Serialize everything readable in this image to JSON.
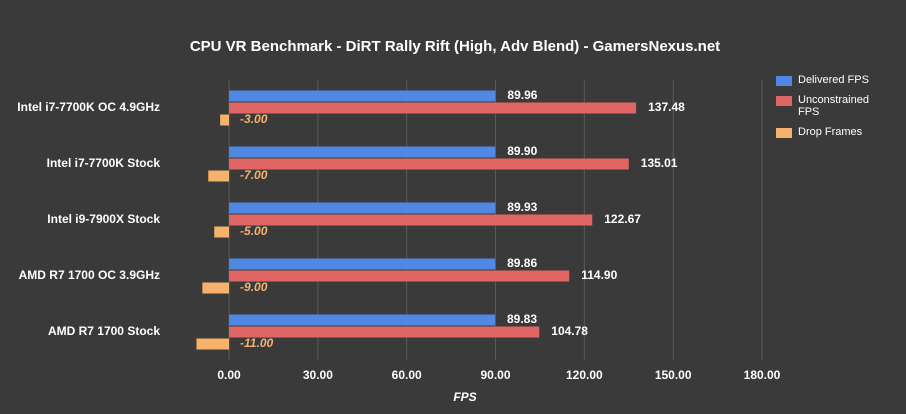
{
  "chart_data": {
    "type": "hbar",
    "title": "CPU VR Benchmark - DiRT Rally Rift (High, Adv Blend) - GamersNexus.net",
    "x_label": "FPS",
    "categories": [
      "Intel i7-7700K OC 4.9GHz",
      "Intel i7-7700K Stock",
      "Intel i9-7900X Stock",
      "AMD R7 1700 OC 3.9GHz",
      "AMD R7 1700 Stock"
    ],
    "series": [
      {
        "name": "Delivered FPS",
        "color": "#5088e6",
        "values": [
          89.96,
          89.9,
          89.93,
          89.86,
          89.83
        ],
        "value_labels": [
          "89.96",
          "89.90",
          "89.93",
          "89.86",
          "89.83"
        ]
      },
      {
        "name": "Unconstrained FPS",
        "color": "#e06666",
        "values": [
          137.48,
          135.01,
          122.67,
          114.9,
          104.78
        ],
        "value_labels": [
          "137.48",
          "135.01",
          "122.67",
          "114.90",
          "104.78"
        ]
      },
      {
        "name": "Drop Frames",
        "color": "#f6b26b",
        "values": [
          -3,
          -7,
          -5,
          -9,
          -11
        ],
        "value_labels": [
          "-3.00",
          "-7.00",
          "-5.00",
          "-9.00",
          "-11.00"
        ]
      }
    ],
    "xlim": [
      -12,
      180
    ],
    "xticks": [
      {
        "value": 0,
        "label": "0.00"
      },
      {
        "value": 30,
        "label": "30.00"
      },
      {
        "value": 60,
        "label": "60.00"
      },
      {
        "value": 90,
        "label": "90.00"
      },
      {
        "value": 120,
        "label": "120.00"
      },
      {
        "value": 150,
        "label": "150.00"
      },
      {
        "value": 180,
        "label": "180.00"
      }
    ],
    "grid": true
  }
}
